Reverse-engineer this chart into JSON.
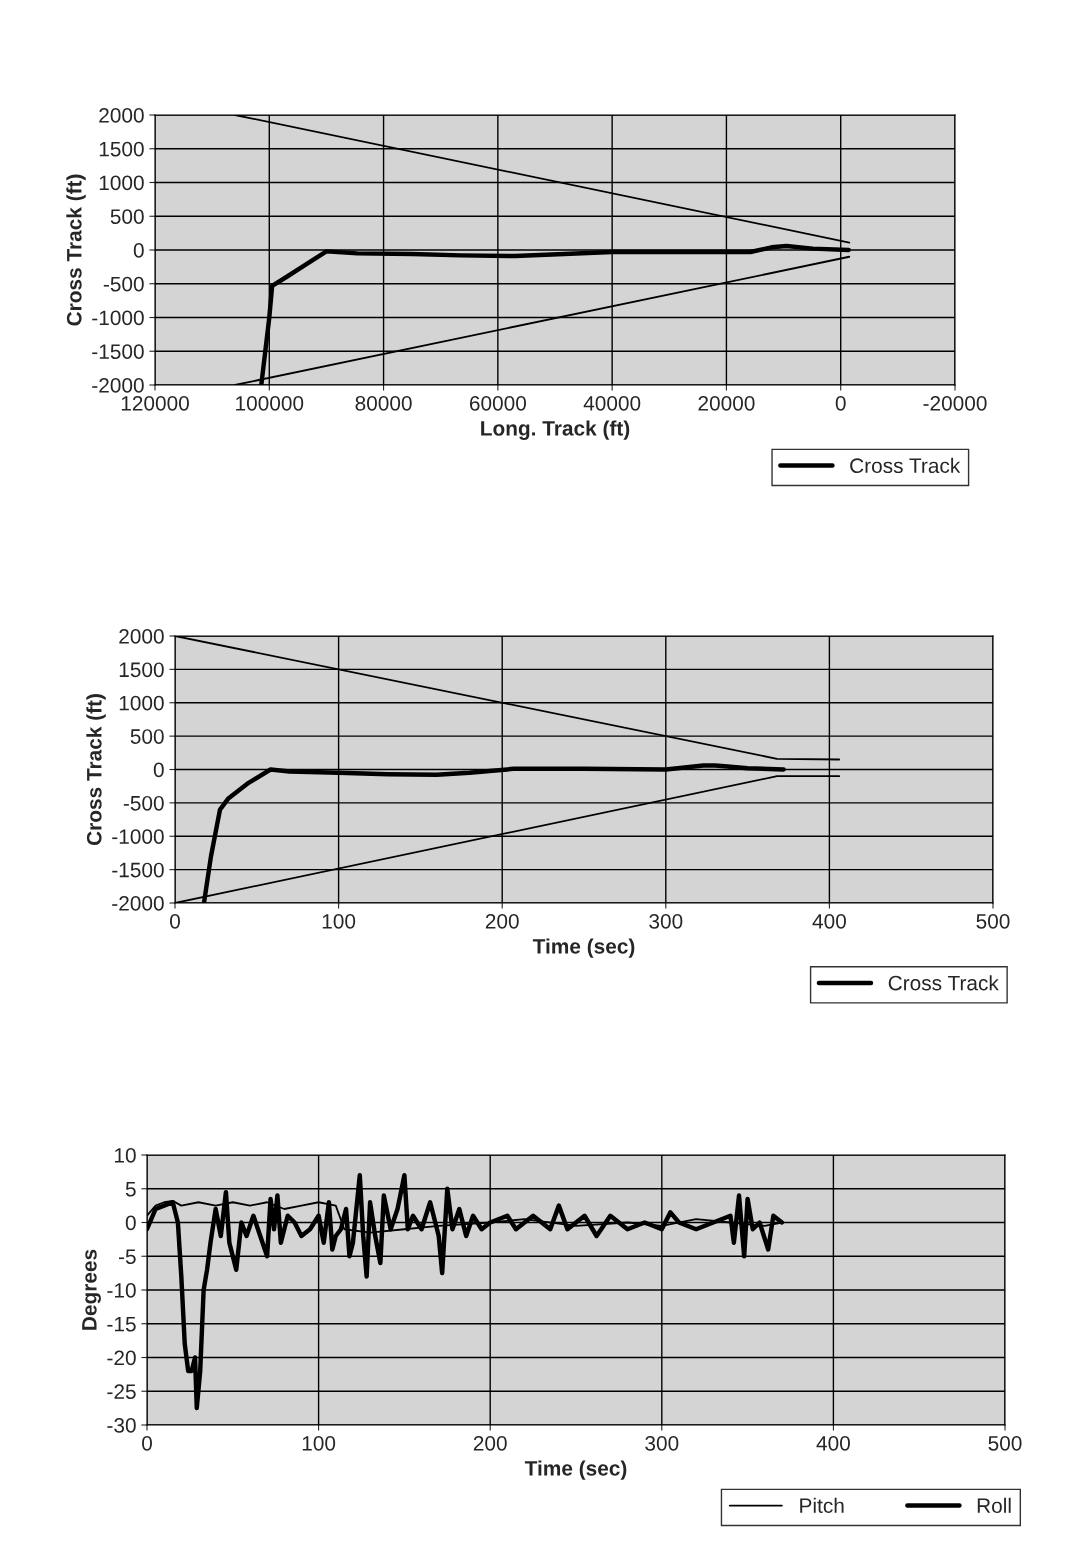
{
  "chart_data": [
    {
      "type": "line",
      "xlabel": "Long. Track (ft)",
      "ylabel": "Cross Track (ft)",
      "xlim": [
        120000,
        -20000
      ],
      "xticks": [
        120000,
        100000,
        80000,
        60000,
        40000,
        20000,
        0,
        -20000
      ],
      "ylim": [
        -2000,
        2000
      ],
      "yticks": [
        -2000,
        -1500,
        -1000,
        -500,
        0,
        500,
        1000,
        1500,
        2000
      ],
      "grid": true,
      "legend": "bottom right",
      "series": [
        {
          "color": "#000000",
          "x": [
            106000,
            -1500
          ],
          "values": [
            2000,
            110
          ]
        },
        {
          "color": "#000000",
          "x": [
            106000,
            -1500
          ],
          "values": [
            -2000,
            -100
          ]
        },
        {
          "name": "Cross Track",
          "color": "#000000",
          "x": [
            101400,
            100000,
            99500,
            97000,
            93700,
            90000,
            84600,
            75000,
            66500,
            57000,
            48400,
            40000,
            30300,
            21250,
            15800,
            12100,
            9500,
            4900,
            -1400
          ],
          "values": [
            -2000,
            -1000,
            -530,
            -400,
            -220,
            -20,
            -50,
            -60,
            -80,
            -90,
            -60,
            -30,
            -30,
            -30,
            -30,
            40,
            60,
            20,
            0
          ]
        }
      ]
    },
    {
      "type": "line",
      "xlabel": "Time (sec)",
      "ylabel": "Cross Track (ft)",
      "xlim": [
        0,
        500
      ],
      "xticks": [
        0,
        100,
        200,
        300,
        400,
        500
      ],
      "ylim": [
        -2000,
        2000
      ],
      "yticks": [
        -2000,
        -1500,
        -1000,
        -500,
        0,
        500,
        1000,
        1500,
        2000
      ],
      "grid": true,
      "legend": "bottom right",
      "series": [
        {
          "color": "#000000",
          "x": [
            0,
            368,
            406
          ],
          "values": [
            2000,
            160,
            150
          ]
        },
        {
          "color": "#000000",
          "x": [
            0,
            368,
            406
          ],
          "values": [
            -2000,
            -100,
            -100
          ]
        },
        {
          "name": "Cross Track",
          "color": "#000000",
          "x": [
            17.7,
            22,
            27.5,
            32.4,
            45,
            58.4,
            70,
            100,
            130,
            160,
            180,
            207,
            250,
            300,
            323,
            330,
            336,
            350,
            372
          ],
          "values": [
            -2000,
            -1300,
            -600,
            -440,
            -200,
            0,
            -30,
            -50,
            -70,
            -80,
            -50,
            10,
            10,
            0,
            60,
            60,
            50,
            20,
            0
          ]
        }
      ]
    },
    {
      "type": "line",
      "xlabel": "Time (sec)",
      "ylabel": "Degrees",
      "xlim": [
        0,
        500
      ],
      "xticks": [
        0,
        100,
        200,
        300,
        400,
        500
      ],
      "ylim": [
        -30,
        10
      ],
      "yticks": [
        -30,
        -25,
        -20,
        -15,
        -10,
        -5,
        0,
        5,
        10
      ],
      "grid": true,
      "legend": "bottom right",
      "series": [
        {
          "name": "Pitch",
          "color": "#000000",
          "x": [
            0,
            5,
            10,
            15,
            20,
            30,
            40,
            50,
            60,
            70,
            80,
            90,
            100,
            110,
            115,
            130,
            150,
            170,
            200,
            220,
            250,
            280,
            300,
            320,
            340,
            360,
            370
          ],
          "values": [
            1,
            2.5,
            3,
            3.2,
            2.5,
            3,
            2.5,
            3,
            2.5,
            3,
            2,
            2.5,
            3,
            2.5,
            -1,
            -1.5,
            -1,
            -0.5,
            0,
            0.5,
            -0.5,
            0,
            -0.5,
            0.5,
            0,
            -0.5,
            0
          ]
        },
        {
          "name": "Roll",
          "color": "#000000",
          "x": [
            0,
            5,
            10,
            15,
            18,
            20,
            22,
            24,
            26,
            28,
            29,
            31,
            33,
            35,
            37,
            40,
            43,
            46,
            48,
            52,
            55,
            58,
            62,
            66,
            70,
            72,
            74,
            76,
            78,
            82,
            86,
            90,
            95,
            100,
            103,
            106,
            108,
            110,
            113,
            116,
            118,
            120,
            124,
            126,
            128,
            130,
            133,
            136,
            138,
            142,
            146,
            150,
            152,
            155,
            160,
            165,
            170,
            172,
            175,
            178,
            182,
            186,
            190,
            195,
            200,
            210,
            215,
            225,
            235,
            240,
            245,
            255,
            262,
            270,
            280,
            290,
            300,
            305,
            310,
            320,
            330,
            340,
            342,
            345,
            348,
            350,
            353,
            357,
            362,
            365,
            370
          ],
          "values": [
            -1,
            2,
            2.5,
            3,
            0,
            -8,
            -18,
            -22,
            -22,
            -20,
            -27.5,
            -22,
            -10,
            -7,
            -3,
            2,
            -2,
            4.5,
            -3,
            -7,
            0,
            -2,
            1,
            -2,
            -5,
            3.5,
            -1,
            4,
            -3,
            1,
            0,
            -2,
            -1,
            1,
            -3,
            3,
            -4,
            -2,
            -1,
            2,
            -5,
            -3,
            7,
            -2,
            -8,
            3,
            -2,
            -6,
            4,
            -1,
            2,
            7,
            -1,
            1,
            -1,
            3,
            -2,
            -7.5,
            5,
            -1,
            2,
            -2,
            1,
            -1,
            0,
            1,
            -1,
            1,
            -1,
            2.5,
            -1,
            1,
            -2,
            1,
            -1,
            0,
            -1,
            1.5,
            0,
            -1,
            0,
            1,
            -3,
            4,
            -5,
            3.5,
            -1,
            0,
            -4,
            1,
            0
          ]
        }
      ]
    }
  ]
}
